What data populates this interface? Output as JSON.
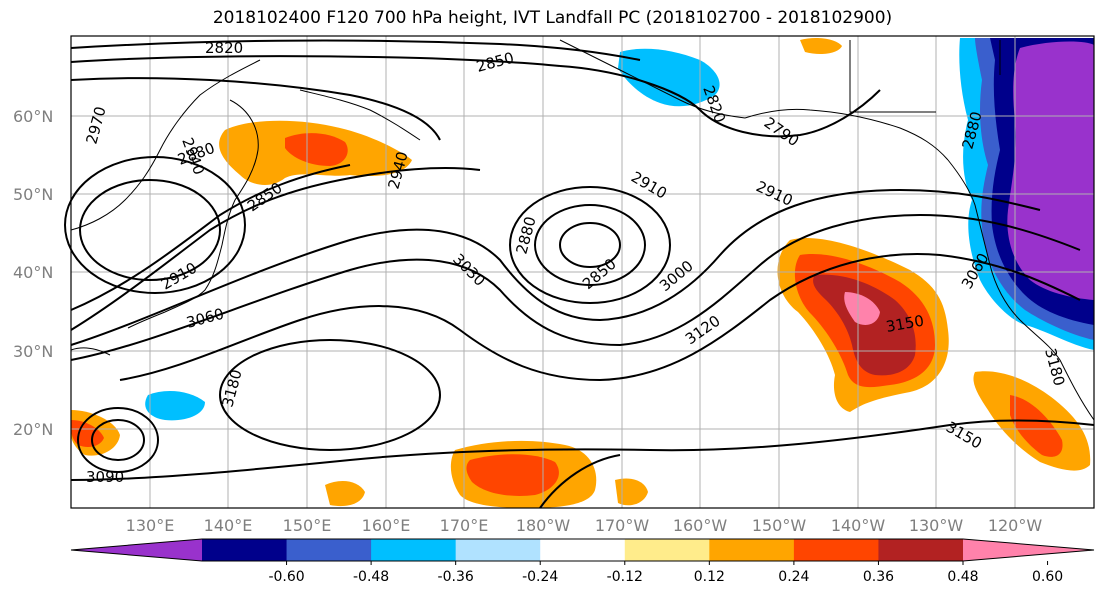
{
  "title": "2018102400 F120 700 hPa height, IVT Landfall PC (2018102700 - 2018102900)",
  "map": {
    "lat_labels": [
      "60°N",
      "50°N",
      "40°N",
      "30°N",
      "20°N"
    ],
    "lon_labels": [
      "130°E",
      "140°E",
      "150°E",
      "160°E",
      "170°E",
      "180°W",
      "170°W",
      "160°W",
      "150°W",
      "140°W",
      "130°W",
      "120°W"
    ],
    "contour_labels": [
      "2820",
      "2850",
      "2970",
      "2940",
      "2880",
      "2850",
      "2940",
      "2910",
      "3060",
      "2820",
      "2790",
      "2910",
      "2910",
      "2880",
      "3030",
      "2850",
      "3000",
      "3120",
      "3150",
      "3180",
      "3090",
      "3150",
      "2880",
      "3060",
      "3180"
    ]
  },
  "colorbar": {
    "colors": [
      "#9932cc",
      "#00008b",
      "#3a5fcd",
      "#00bfff",
      "#b0e2ff",
      "#ffffff",
      "#ffec8b",
      "#ffa500",
      "#ff4500",
      "#b22222",
      "#ff82ab"
    ],
    "tick_labels": [
      "-0.60",
      "-0.48",
      "-0.36",
      "-0.24",
      "-0.12",
      "0.12",
      "0.24",
      "0.36",
      "0.48",
      "0.60"
    ]
  }
}
